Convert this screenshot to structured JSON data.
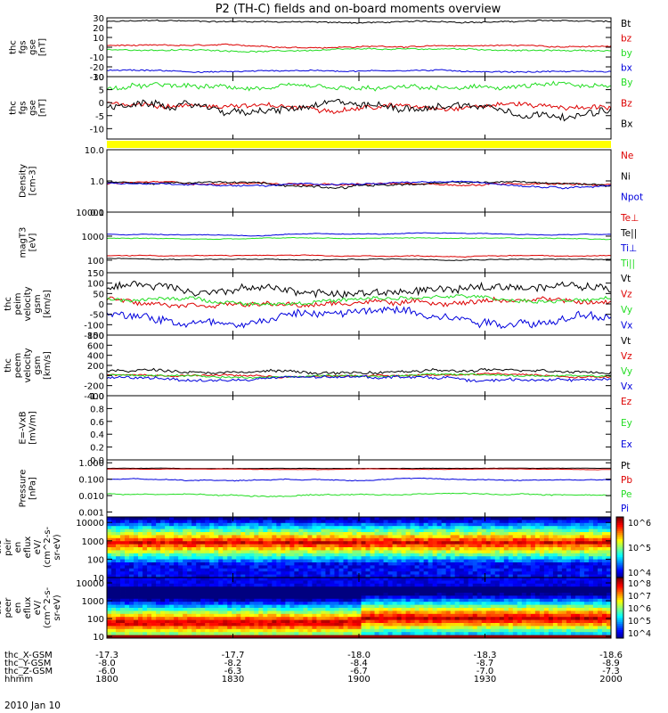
{
  "title": "P2 (TH-C) fields and on-board moments overview",
  "date_label": "2010 Jan 10",
  "xaxis_rows": [
    {
      "name": "thc_X-GSM",
      "values": [
        "-17.3",
        "-17.7",
        "-18.0",
        "-18.3",
        "-18.6"
      ]
    },
    {
      "name": "thc_Y-GSM",
      "values": [
        "-8.0",
        "-8.2",
        "-8.4",
        "-8.7",
        "-8.9"
      ]
    },
    {
      "name": "thc_Z-GSM",
      "values": [
        "-6.0",
        "-6.3",
        "-6.7",
        "-7.0",
        "-7.3"
      ]
    },
    {
      "name": "hhmm",
      "values": [
        "1800",
        "1830",
        "1900",
        "1930",
        "2000"
      ]
    }
  ],
  "colors": {
    "black": "#000000",
    "red": "#dd0000",
    "green": "#22dd22",
    "blue": "#0000dd",
    "yellow": "#ffff00"
  },
  "chart_data": [
    {
      "type": "line",
      "ylabel": [
        "thc",
        "fgs",
        "gse",
        "[nT]"
      ],
      "ylim": [
        -30,
        30
      ],
      "yticks": [
        "-30",
        "-20",
        "-10",
        "0",
        "10",
        "20",
        "30"
      ],
      "series": [
        {
          "name": "Bt",
          "color": "black",
          "base": 26,
          "amp": 1.5
        },
        {
          "name": "bz",
          "color": "red",
          "base": 1,
          "amp": 1.5
        },
        {
          "name": "by",
          "color": "green",
          "base": -3,
          "amp": 1.5
        },
        {
          "name": "bx",
          "color": "blue",
          "base": -24,
          "amp": 1.5
        }
      ]
    },
    {
      "type": "line",
      "ylabel": [
        "thc",
        "fgs",
        "gse",
        "[nT]"
      ],
      "ylim": [
        -14,
        10
      ],
      "yticks": [
        "-10",
        "-5",
        "0",
        "5",
        "10"
      ],
      "series": [
        {
          "name": "By",
          "color": "green",
          "base": 5,
          "amp": 2
        },
        {
          "name": "Bz",
          "color": "red",
          "base": -1,
          "amp": 2
        },
        {
          "name": "Bx",
          "color": "black",
          "base": -2,
          "amp": 3
        }
      ]
    },
    {
      "type": "line",
      "ylabel": [
        "Density",
        "[cm-3]"
      ],
      "ylim": [
        0.1,
        10
      ],
      "log": true,
      "yticks": [
        "0.1",
        "1.0",
        "10.0"
      ],
      "series": [
        {
          "name": "Ne",
          "color": "red",
          "base": 0.8,
          "amp": 0.2
        },
        {
          "name": "Ni",
          "color": "black",
          "base": 0.8,
          "amp": 0.2
        },
        {
          "name": "Npot",
          "color": "blue",
          "base": 0.8,
          "amp": 0.15
        }
      ]
    },
    {
      "type": "line",
      "ylabel": [
        "magT3",
        "[eV]"
      ],
      "ylim": [
        30,
        10000
      ],
      "log": true,
      "yticks": [
        "100",
        "1000",
        "10000"
      ],
      "series": [
        {
          "name": "Te⊥",
          "color": "red",
          "base": 150,
          "amp": 20
        },
        {
          "name": "Te||",
          "color": "black",
          "base": 110,
          "amp": 15
        },
        {
          "name": "Ti⊥",
          "color": "blue",
          "base": 1200,
          "amp": 150
        },
        {
          "name": "Ti||",
          "color": "green",
          "base": 800,
          "amp": 100
        }
      ]
    },
    {
      "type": "line",
      "ylabel": [
        "thc",
        "peim",
        "velocity",
        "gsm",
        "[km/s]"
      ],
      "ylim": [
        -150,
        150
      ],
      "yticks": [
        "-150",
        "-100",
        "-50",
        "0",
        "50",
        "100",
        "150"
      ],
      "series": [
        {
          "name": "Vt",
          "color": "black",
          "base": 70,
          "amp": 40
        },
        {
          "name": "Vz",
          "color": "red",
          "base": 10,
          "amp": 25
        },
        {
          "name": "Vy",
          "color": "green",
          "base": 20,
          "amp": 20
        },
        {
          "name": "Vx",
          "color": "blue",
          "base": -50,
          "amp": 45
        }
      ]
    },
    {
      "type": "line",
      "ylabel": [
        "thc",
        "peem",
        "velocity",
        "gsm",
        "[km/s]"
      ],
      "ylim": [
        -400,
        800
      ],
      "yticks": [
        "-400",
        "-200",
        "0",
        "200",
        "400",
        "600",
        "800"
      ],
      "series": [
        {
          "name": "Vt",
          "color": "black",
          "base": 80,
          "amp": 60
        },
        {
          "name": "Vz",
          "color": "red",
          "base": 0,
          "amp": 40
        },
        {
          "name": "Vy",
          "color": "green",
          "base": 0,
          "amp": 40
        },
        {
          "name": "Vx",
          "color": "blue",
          "base": -60,
          "amp": 60
        }
      ]
    },
    {
      "type": "line",
      "ylabel": [
        "E=-VxB",
        "[mV/m]"
      ],
      "ylim": [
        0,
        1
      ],
      "yticks": [
        "0.0",
        "0.2",
        "0.4",
        "0.6",
        "0.8",
        "1.0"
      ],
      "series": [
        {
          "name": "Ez",
          "color": "red",
          "base": null,
          "amp": 0
        },
        {
          "name": "Ey",
          "color": "green",
          "base": null,
          "amp": 0
        },
        {
          "name": "Ex",
          "color": "blue",
          "base": null,
          "amp": 0
        }
      ]
    },
    {
      "type": "line",
      "ylabel": [
        "Pressure",
        "[nPa]"
      ],
      "ylim": [
        0.0005,
        1.5
      ],
      "log": true,
      "yticks": [
        "0.001",
        "0.010",
        "0.100",
        "1.000"
      ],
      "series": [
        {
          "name": "Pt",
          "color": "black",
          "base": 0.45,
          "amp": 0.03
        },
        {
          "name": "Pb",
          "color": "red",
          "base": 0.4,
          "amp": 0.03
        },
        {
          "name": "Pe",
          "color": "green",
          "base": 0.012,
          "amp": 0.003
        },
        {
          "name": "Pi",
          "color": "blue",
          "base": 0.1,
          "amp": 0.02
        }
      ]
    },
    {
      "type": "heatmap",
      "ylabel": [
        "thc",
        "peir",
        "en",
        "eflux",
        "eV/",
        "(cm^2-s-",
        "sr-eV)"
      ],
      "ylim": [
        10,
        20000
      ],
      "log": true,
      "yticks": [
        "10",
        "100",
        "1000",
        "10000"
      ],
      "colorbar": {
        "ticks": [
          "10^4",
          "10^5",
          "10^6"
        ]
      }
    },
    {
      "type": "heatmap",
      "ylabel": [
        "thc",
        "peer",
        "en",
        "eflux",
        "eV/",
        "(cm^2-s-",
        "sr-eV)"
      ],
      "ylim": [
        8,
        20000
      ],
      "log": true,
      "yticks": [
        "10",
        "100",
        "1000",
        "10000"
      ],
      "colorbar": {
        "ticks": [
          "10^4",
          "10^5",
          "10^6",
          "10^7",
          "10^8"
        ]
      }
    }
  ]
}
